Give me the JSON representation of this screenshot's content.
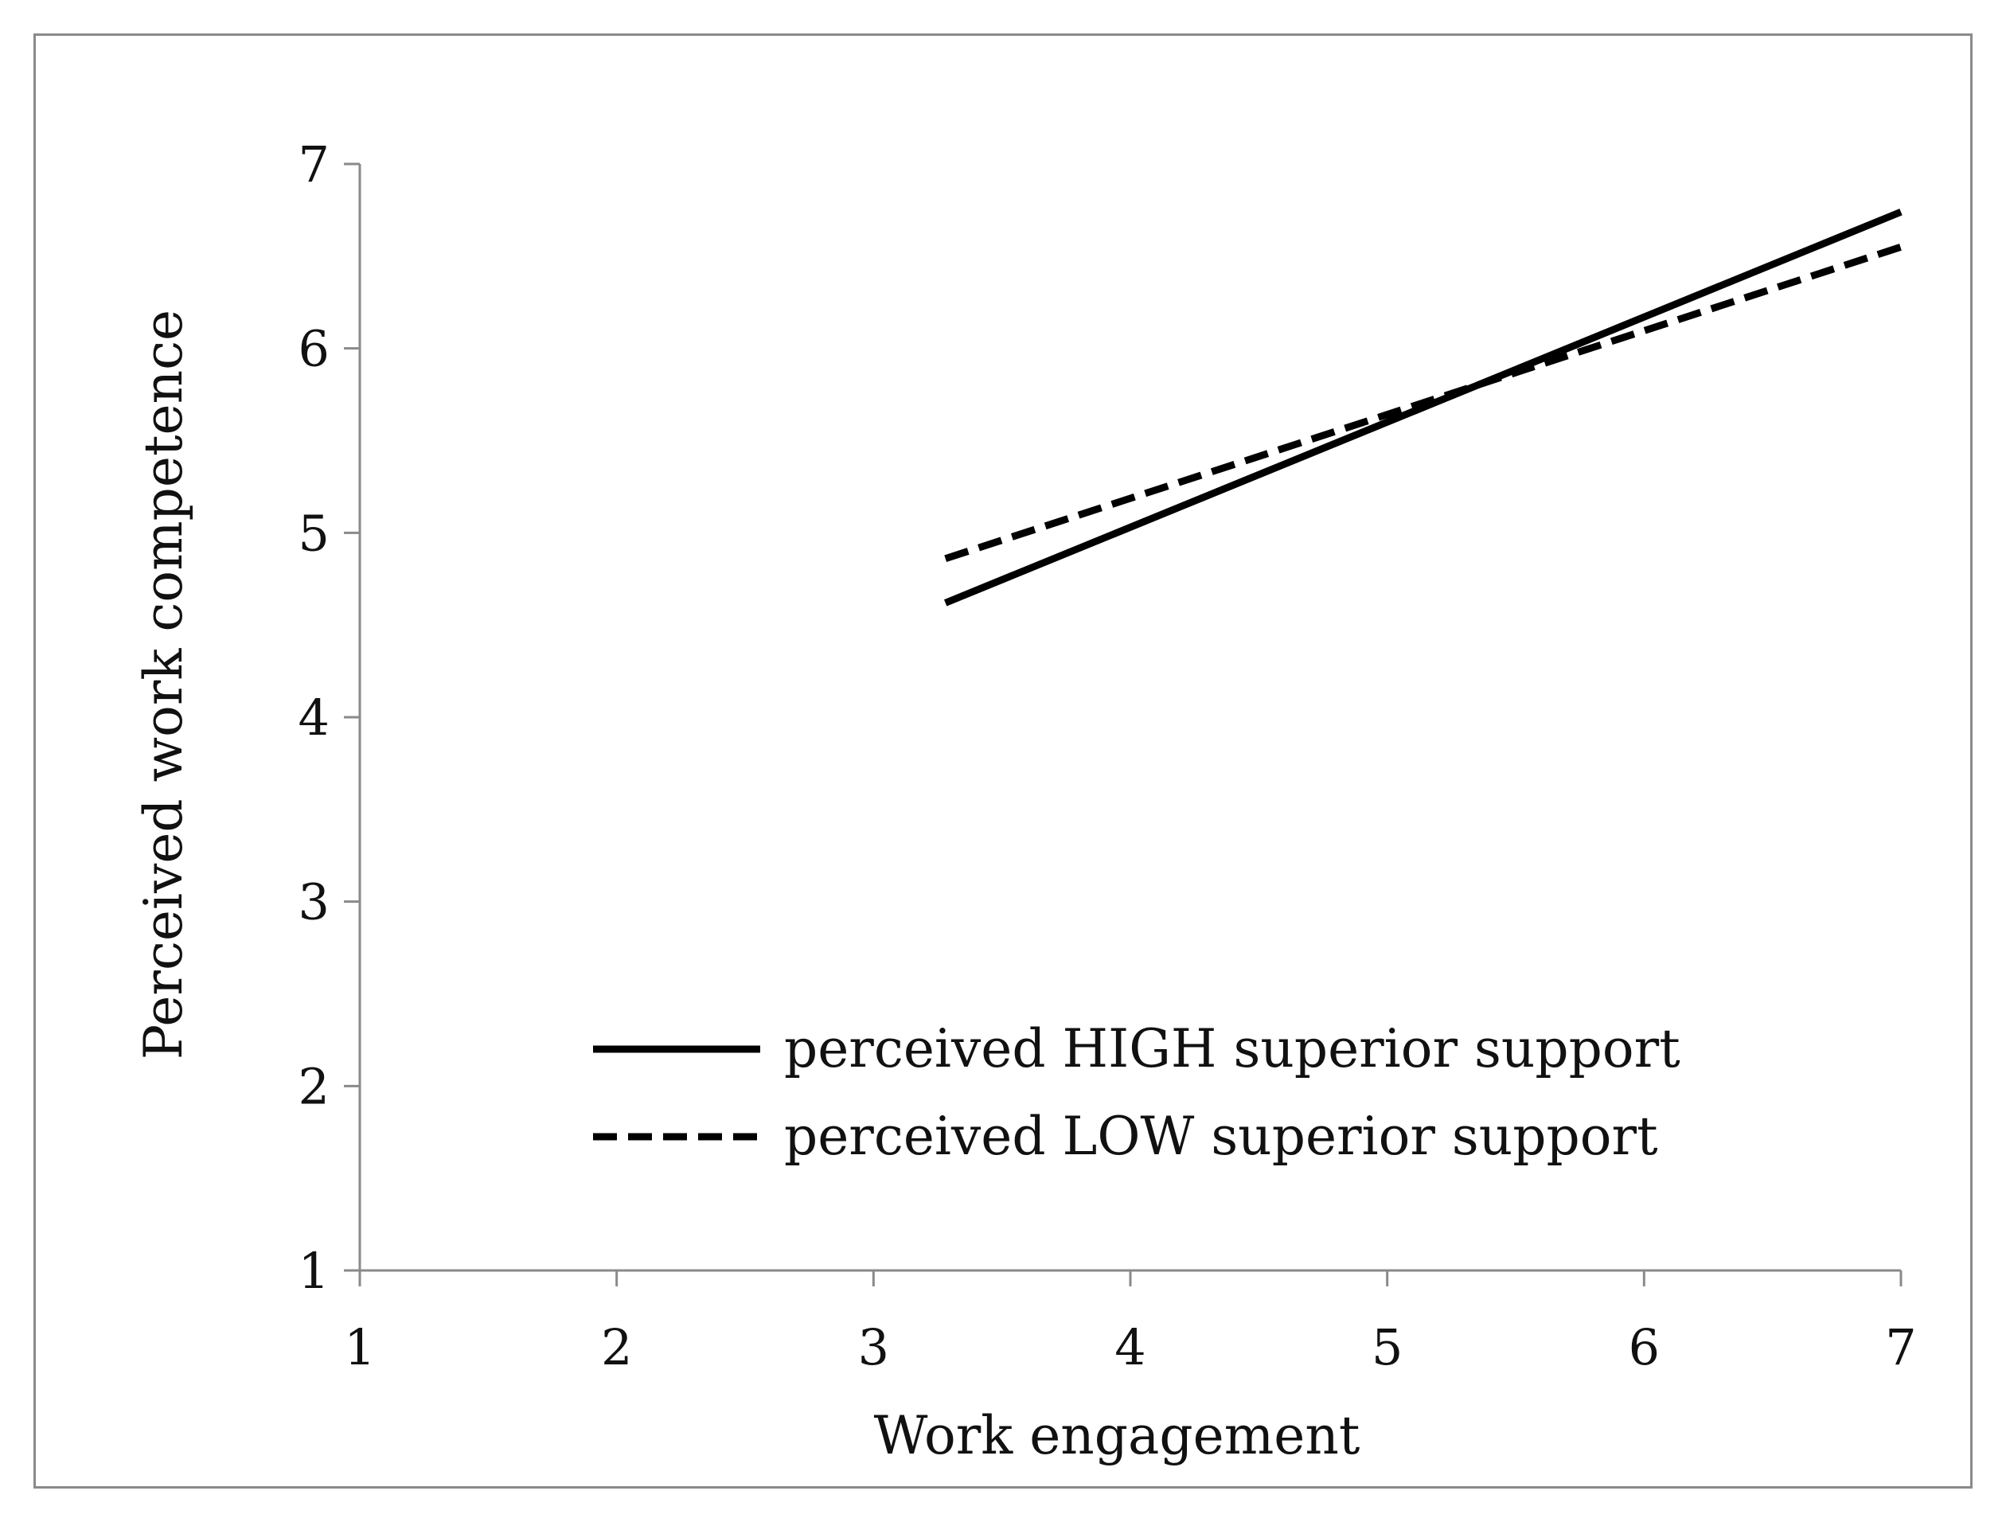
{
  "chart_data": {
    "type": "line",
    "xlabel": "Work engagement",
    "ylabel": "Perceived work competence",
    "xlim": [
      1,
      7
    ],
    "ylim": [
      1,
      7
    ],
    "xticks": [
      "1",
      "2",
      "3",
      "4",
      "5",
      "6",
      "7"
    ],
    "yticks": [
      "1",
      "2",
      "3",
      "4",
      "5",
      "6",
      "7"
    ],
    "grid": false,
    "legend_position": "bottom-center",
    "series": [
      {
        "name": "perceived HIGH superior support",
        "style": "solid",
        "color": "#000000",
        "x": [
          3.28,
          7.0
        ],
        "y": [
          4.62,
          6.74
        ]
      },
      {
        "name": "perceived LOW superior support",
        "style": "dashed",
        "color": "#000000",
        "x": [
          3.28,
          7.0
        ],
        "y": [
          4.86,
          6.55
        ]
      }
    ]
  }
}
